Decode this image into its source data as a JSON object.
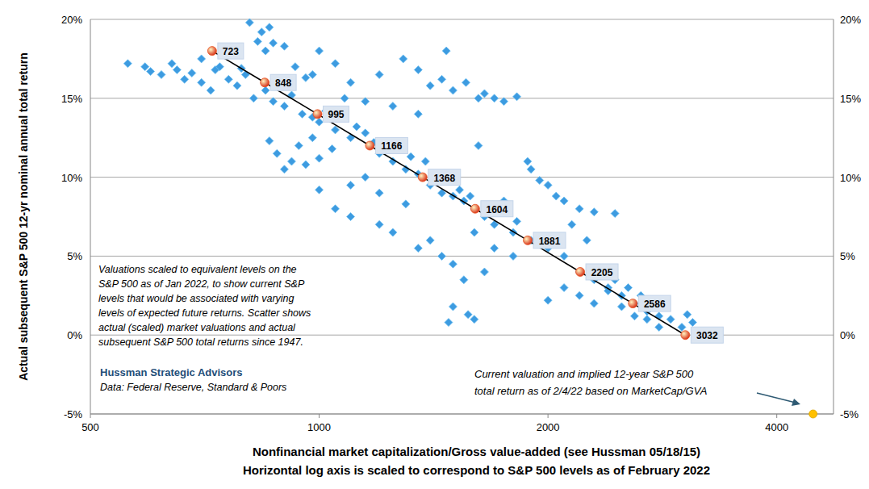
{
  "chart_data": {
    "type": "scatter",
    "x_label": [
      "Nonfinancial market capitalization/Gross value-added (see Hussman 05/18/15)",
      "Horizontal log axis is scaled to correspond to S&P 500 levels as of February 2022"
    ],
    "y_label": "Actual subsequent S&P 500 12-yr nominal annual total return",
    "log": "x",
    "grid": true,
    "xlim": [
      500,
      4750
    ],
    "xticks": [
      500,
      1000,
      2000,
      4000
    ],
    "ylim": [
      -5,
      20
    ],
    "yticks": [
      {
        "value": -5,
        "label": "-5%"
      },
      {
        "value": 0,
        "label": "0%"
      },
      {
        "value": 5,
        "label": "5%"
      },
      {
        "value": 10,
        "label": "10%"
      },
      {
        "value": 15,
        "label": "15%"
      },
      {
        "value": 20,
        "label": "20%"
      }
    ],
    "annotations": [
      [
        "Valuations scaled to equivalent levels on the",
        "S&P 500 as of Jan 2022,  to show current S&P",
        "levels that would be associated with varying",
        "levels of expected future returns. Scatter shows",
        "actual (scaled) market valuations and actual",
        "subsequent S&P 500 total returns since 1947."
      ],
      [
        "Hussman Strategic Advisors"
      ],
      [
        "Data: Federal Reserve, Standard & Poors"
      ],
      [
        "Current valuation and implied 12-year S&P 500",
        "total return as of 2/4/22 based on MarketCap/GVA"
      ]
    ],
    "series": [
      {
        "type": "scatter",
        "marker": "diamond",
        "color": "#3d9be0",
        "x": [
          560,
          590,
          600,
          620,
          640,
          650,
          665,
          680,
          700,
          700,
          720,
          730,
          740,
          760,
          760,
          780,
          790,
          800,
          810,
          820,
          830,
          840,
          850,
          850,
          860,
          870,
          870,
          880,
          900,
          900,
          920,
          930,
          950,
          960,
          980,
          980,
          1000,
          1000,
          1020,
          1050,
          1100,
          1200,
          1290,
          1350,
          1400,
          1450,
          1470,
          1500,
          1560,
          1620,
          1650,
          1700,
          1750,
          1820,
          880,
          900,
          920,
          960,
          1000,
          1050,
          1100,
          1150,
          1200,
          1250,
          1300,
          1350,
          1400,
          1450,
          1500,
          1550,
          1600,
          1650,
          1700,
          1800,
          1900,
          2000,
          2100,
          2200,
          2300,
          2400,
          2500,
          2600,
          2700,
          2800,
          2900,
          3000,
          3100,
          1050,
          1100,
          1200,
          1250,
          1300,
          1350,
          1400,
          1450,
          1500,
          1550,
          1500,
          1600,
          1900,
          1950,
          2000,
          2050,
          2100,
          2200,
          2300,
          2450,
          1880,
          2000,
          2100,
          2200,
          2300,
          2400,
          2500,
          2600,
          2700,
          2800,
          3050,
          1100,
          1200,
          1480,
          1570,
          1620,
          1120,
          1180,
          1260,
          1320,
          1380,
          1420,
          1480,
          1530,
          1580,
          1680,
          1750,
          1820,
          1700,
          1800,
          1750,
          2150,
          2250,
          2350,
          2450,
          2550,
          2650,
          2750,
          1350,
          1250,
          1150,
          1080,
          940,
          980,
          860,
          1040,
          1600,
          1650,
          1150,
          1000
        ],
        "values": [
          17.2,
          17.0,
          16.7,
          16.5,
          17.2,
          16.8,
          16.2,
          16.6,
          16.0,
          17.5,
          15.5,
          16.8,
          17.0,
          16.2,
          17.8,
          15.8,
          16.9,
          16.5,
          19.8,
          15.0,
          18.6,
          19.2,
          15.5,
          18.0,
          19.5,
          14.8,
          18.5,
          16.2,
          14.5,
          18.3,
          15.2,
          17.0,
          14.0,
          16.3,
          13.8,
          16.5,
          13.5,
          18.0,
          14.2,
          17.2,
          16.0,
          16.5,
          17.5,
          16.8,
          15.8,
          16.2,
          18.0,
          15.5,
          16.0,
          15.0,
          15.3,
          15.0,
          14.8,
          15.1,
          11.5,
          10.5,
          11.0,
          10.8,
          11.2,
          13.0,
          12.5,
          12.8,
          11.5,
          11.0,
          10.5,
          10.2,
          9.5,
          9.0,
          8.8,
          8.5,
          8.0,
          7.5,
          7.0,
          6.5,
          6.0,
          5.5,
          5.0,
          4.0,
          3.5,
          3.0,
          2.5,
          2.0,
          1.5,
          1.2,
          1.0,
          0.5,
          0.8,
          8.0,
          7.5,
          7.0,
          6.5,
          8.3,
          5.5,
          6.0,
          5.0,
          4.5,
          3.5,
          1.8,
          1.0,
          10.5,
          9.8,
          9.5,
          8.8,
          8.5,
          8.0,
          7.8,
          7.7,
          11.0,
          2.2,
          3.0,
          2.5,
          2.0,
          2.8,
          1.8,
          1.2,
          1.0,
          0.5,
          1.3,
          9.5,
          9.0,
          0.8,
          1.3,
          12.0,
          13.2,
          12.2,
          12.0,
          11.3,
          11.0,
          10.0,
          9.8,
          9.2,
          8.8,
          8.2,
          7.8,
          7.2,
          5.5,
          5.0,
          8.5,
          7.0,
          6.0,
          4.2,
          3.5,
          3.0,
          2.5,
          2.0,
          14.0,
          14.5,
          14.8,
          15.0,
          12.0,
          12.5,
          12.3,
          11.8,
          6.5,
          4.0,
          10.0,
          9.2
        ]
      },
      {
        "type": "line",
        "marker": "circle",
        "color": "#e8501e",
        "data_labels": true,
        "x": [
          723,
          848,
          995,
          1166,
          1368,
          1604,
          1881,
          2205,
          2586,
          3032
        ],
        "values": [
          18,
          16,
          14,
          12,
          10,
          8,
          6,
          4,
          2,
          0
        ]
      },
      {
        "type": "scatter",
        "marker": "circle",
        "color": "#ffc000",
        "x": [
          4465
        ],
        "values": [
          -5
        ]
      }
    ]
  }
}
